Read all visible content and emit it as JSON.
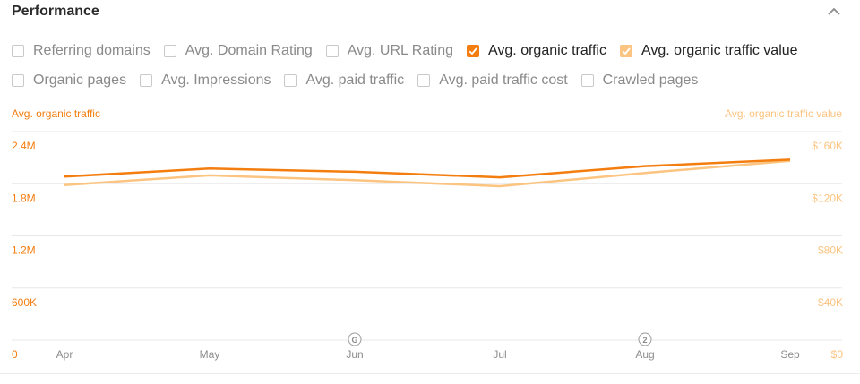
{
  "header": {
    "title": "Performance"
  },
  "colors": {
    "primary": "#f47d0f",
    "secondary": "#fcc481",
    "grid": "#e8e8e8",
    "tick_muted": "#8d8d8d"
  },
  "checkboxes": [
    [
      {
        "label": "Referring domains",
        "checked": false
      },
      {
        "label": "Avg. Domain Rating",
        "checked": false
      },
      {
        "label": "Avg. URL Rating",
        "checked": false
      },
      {
        "label": "Avg. organic traffic",
        "checked": true,
        "color": "#f47d0f"
      },
      {
        "label": "Avg. organic traffic value",
        "checked": true,
        "color": "#fcc481"
      }
    ],
    [
      {
        "label": "Organic pages",
        "checked": false
      },
      {
        "label": "Avg. Impressions",
        "checked": false
      },
      {
        "label": "Avg. paid traffic",
        "checked": false
      },
      {
        "label": "Avg. paid traffic cost",
        "checked": false
      },
      {
        "label": "Crawled pages",
        "checked": false
      }
    ]
  ],
  "chart_data": {
    "type": "line",
    "x": [
      "Apr",
      "May",
      "Jun",
      "Jul",
      "Aug",
      "Sep"
    ],
    "y_left": {
      "label": "Avg. organic traffic",
      "ticks": [
        "0",
        "600K",
        "1.2M",
        "1.8M",
        "2.4M"
      ],
      "range": [
        0,
        2400000
      ]
    },
    "y_right": {
      "label": "Avg. organic traffic value",
      "ticks": [
        "$0",
        "$40K",
        "$80K",
        "$120K",
        "$160K"
      ],
      "range": [
        0,
        160000
      ]
    },
    "series": [
      {
        "name": "Avg. organic traffic",
        "axis": "left",
        "color": "#f47d0f",
        "values": [
          2040000,
          2140000,
          2100000,
          2030000,
          2170000,
          2250000
        ]
      },
      {
        "name": "Avg. organic traffic value",
        "axis": "right",
        "color": "#fcc481",
        "values": [
          129000,
          137000,
          133000,
          128000,
          139000,
          149000
        ]
      }
    ],
    "annotations": [
      {
        "x": "Jun",
        "label": "G"
      },
      {
        "x": "Aug",
        "label": "2"
      }
    ],
    "grid": true
  }
}
